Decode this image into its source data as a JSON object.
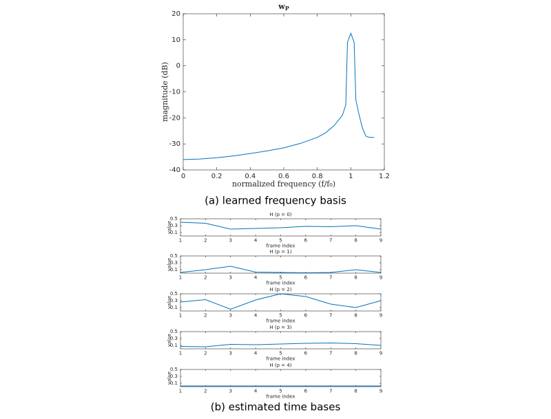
{
  "chart_data": [
    {
      "type": "line",
      "title": "w",
      "title_subscript": "P",
      "xlabel": "normalized frequency (f/f₀)",
      "ylabel": "magnitude (dB)",
      "x": [
        0,
        0.1,
        0.2,
        0.3,
        0.4,
        0.5,
        0.6,
        0.7,
        0.8,
        0.85,
        0.9,
        0.95,
        0.97,
        0.98,
        1.0,
        1.02,
        1.03,
        1.05,
        1.07,
        1.09,
        1.1,
        1.12,
        1.14
      ],
      "values": [
        -36,
        -35.8,
        -35.3,
        -34.6,
        -33.7,
        -32.7,
        -31.5,
        -29.8,
        -27.5,
        -25.7,
        -23,
        -19,
        -15,
        9,
        12.5,
        9,
        -13,
        -19,
        -24,
        -27,
        -27.3,
        -27.5,
        -27.5
      ],
      "color": "#0072bd",
      "xlim": [
        0,
        1.2
      ],
      "xticks": [
        0,
        0.2,
        0.4,
        0.6,
        0.8,
        1,
        1.2
      ],
      "ylim": [
        -40,
        20
      ],
      "yticks": [
        -40,
        -30,
        -20,
        -10,
        0,
        10,
        20
      ]
    },
    {
      "type": "line",
      "title": "H (p = 0)",
      "xlabel": "frame index",
      "ylabel": "value",
      "x": [
        1,
        2,
        3,
        4,
        5,
        6,
        7,
        8,
        9
      ],
      "values": [
        0.4,
        0.37,
        0.2,
        0.22,
        0.24,
        0.28,
        0.27,
        0.3,
        0.2
      ],
      "color": "#0072bd",
      "xlim": [
        1,
        9
      ],
      "xticks": [
        1,
        2,
        3,
        4,
        5,
        6,
        7,
        8,
        9
      ],
      "ylim": [
        0,
        0.5
      ],
      "yticks": [
        0.1,
        0.3,
        0.5
      ]
    },
    {
      "type": "line",
      "title": "H (p = 1)",
      "xlabel": "frame index",
      "ylabel": "value",
      "x": [
        1,
        2,
        3,
        4,
        5,
        6,
        7,
        8,
        9
      ],
      "values": [
        0.02,
        0.1,
        0.2,
        0.03,
        0.02,
        0.01,
        0.02,
        0.1,
        0.02
      ],
      "color": "#0072bd",
      "xlim": [
        1,
        9
      ],
      "xticks": [
        1,
        2,
        3,
        4,
        5,
        6,
        7,
        8,
        9
      ],
      "ylim": [
        0,
        0.5
      ],
      "yticks": [
        0.1,
        0.3,
        0.5
      ]
    },
    {
      "type": "line",
      "title": "H (p = 2)",
      "xlabel": "frame index",
      "ylabel": "value",
      "x": [
        1,
        2,
        3,
        4,
        5,
        6,
        7,
        8,
        9
      ],
      "values": [
        0.26,
        0.33,
        0.05,
        0.32,
        0.5,
        0.42,
        0.2,
        0.1,
        0.3
      ],
      "color": "#0072bd",
      "xlim": [
        1,
        9
      ],
      "xticks": [
        1,
        2,
        3,
        4,
        5,
        6,
        7,
        8,
        9
      ],
      "ylim": [
        0,
        0.5
      ],
      "yticks": [
        0.1,
        0.3,
        0.5
      ]
    },
    {
      "type": "line",
      "title": "H (p = 3)",
      "xlabel": "frame index",
      "ylabel": "value",
      "x": [
        1,
        2,
        3,
        4,
        5,
        6,
        7,
        8,
        9
      ],
      "values": [
        0.07,
        0.06,
        0.13,
        0.12,
        0.14,
        0.16,
        0.17,
        0.15,
        0.1
      ],
      "color": "#0072bd",
      "xlim": [
        1,
        9
      ],
      "xticks": [
        1,
        2,
        3,
        4,
        5,
        6,
        7,
        8,
        9
      ],
      "ylim": [
        0,
        0.5
      ],
      "yticks": [
        0.1,
        0.3,
        0.5
      ]
    },
    {
      "type": "line",
      "title": "H (p = 4)",
      "xlabel": "frame index",
      "ylabel": "value",
      "x": [
        1,
        2,
        3,
        4,
        5,
        6,
        7,
        8,
        9
      ],
      "values": [
        0.02,
        0.02,
        0.02,
        0.02,
        0.02,
        0.02,
        0.02,
        0.02,
        0.02
      ],
      "color": "#0072bd",
      "xlim": [
        1,
        9
      ],
      "xticks": [
        1,
        2,
        3,
        4,
        5,
        6,
        7,
        8,
        9
      ],
      "ylim": [
        0,
        0.5
      ],
      "yticks": [
        0.1,
        0.3,
        0.5
      ]
    }
  ],
  "captions": [
    "(a) learned frequency basis",
    "(b) estimated time bases"
  ]
}
